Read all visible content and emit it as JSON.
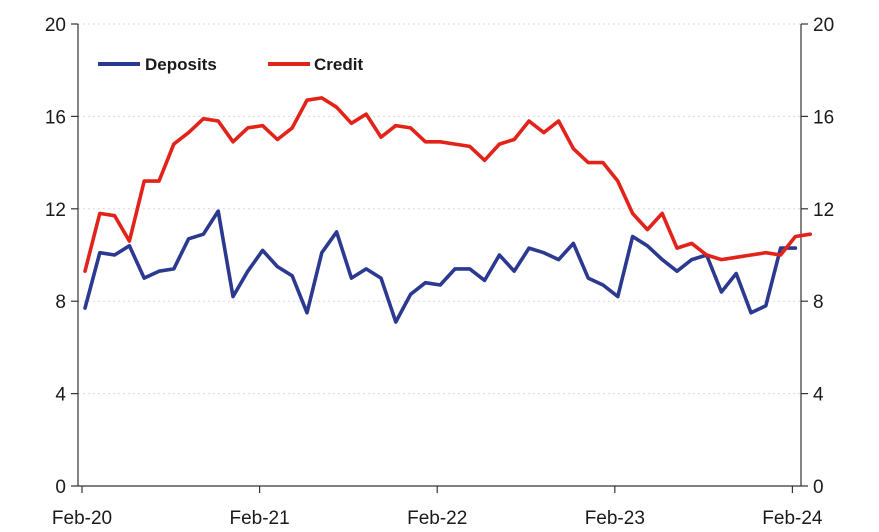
{
  "chart_data": {
    "type": "line",
    "title": "",
    "xlabel": "",
    "ylabel": "",
    "ylim": [
      0,
      20
    ],
    "y_ticks": [
      0,
      4,
      8,
      12,
      16,
      20
    ],
    "y_tick_labels": [
      "0",
      "4",
      "8",
      "12",
      "16",
      "20"
    ],
    "secondary_y_ticks": [
      0,
      4,
      8,
      12,
      16,
      20
    ],
    "secondary_y_tick_labels": [
      "0",
      "4",
      "8",
      "12",
      "16",
      "20"
    ],
    "x_tick_labels": [
      "Feb-20",
      "Feb-21",
      "Feb-22",
      "Feb-23",
      "Feb-24"
    ],
    "x_tick_index": [
      0,
      12,
      24,
      36,
      48
    ],
    "grid": true,
    "legend_position": "top-left",
    "series": [
      {
        "name": "Deposits",
        "color": "#2b3990",
        "values": [
          7.7,
          10.1,
          10.0,
          10.4,
          9.0,
          9.3,
          9.4,
          10.7,
          10.9,
          11.9,
          8.2,
          9.3,
          10.2,
          9.5,
          9.1,
          7.5,
          10.1,
          11.0,
          9.0,
          9.4,
          9.0,
          7.1,
          8.3,
          8.8,
          8.7,
          9.4,
          9.4,
          8.9,
          10.0,
          9.3,
          10.3,
          10.1,
          9.8,
          10.5,
          9.0,
          8.7,
          8.2,
          10.8,
          10.4,
          9.8,
          9.3,
          9.8,
          10.0,
          8.4,
          9.2,
          7.5,
          7.8,
          10.3,
          10.3
        ]
      },
      {
        "name": "Credit",
        "color": "#e2231a",
        "values": [
          9.3,
          11.8,
          11.7,
          10.6,
          13.2,
          13.2,
          14.8,
          15.3,
          15.9,
          15.8,
          14.9,
          15.5,
          15.6,
          15.0,
          15.5,
          16.7,
          16.8,
          16.4,
          15.7,
          16.1,
          15.1,
          15.6,
          15.5,
          14.9,
          14.9,
          14.8,
          14.7,
          14.1,
          14.8,
          15.0,
          15.8,
          15.3,
          15.8,
          14.6,
          14.0,
          14.0,
          13.2,
          11.8,
          11.1,
          11.8,
          10.3,
          10.5,
          10.0,
          9.8,
          9.9,
          10.0,
          10.1,
          10.0,
          10.8,
          10.9
        ]
      }
    ]
  }
}
